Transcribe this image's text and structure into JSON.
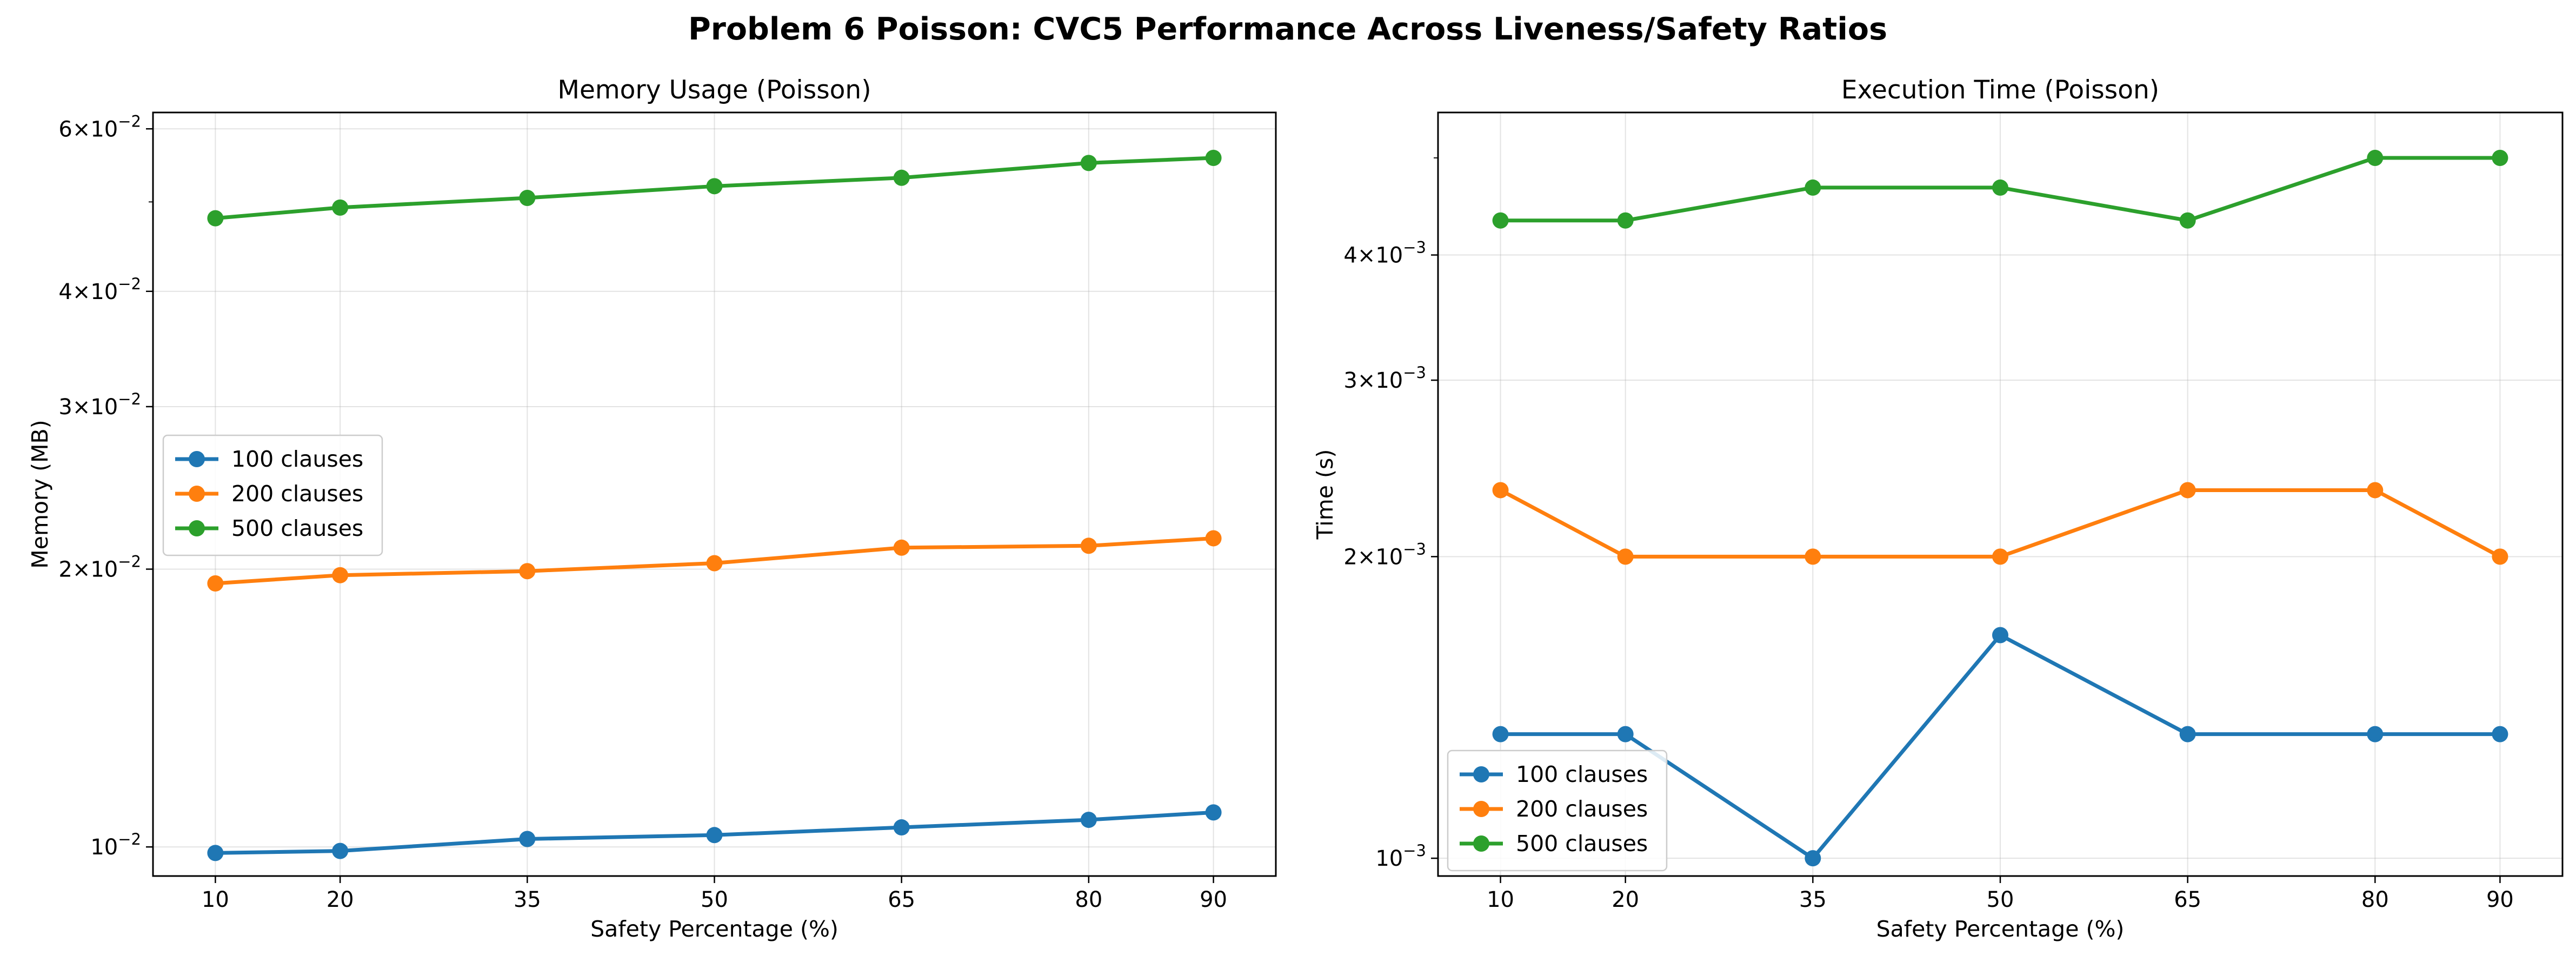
{
  "figure": {
    "suptitle": "Problem 6 Poisson: CVC5 Performance Across Liveness/Safety Ratios"
  },
  "chart_data": [
    {
      "type": "line",
      "title": "Memory Usage (Poisson)",
      "xlabel": "Safety Percentage (%)",
      "ylabel": "Memory (MB)",
      "yscale": "log",
      "xlim": [
        5,
        95
      ],
      "ylim": [
        0.0093,
        0.0625
      ],
      "grid": true,
      "legend_position": "center-left",
      "x": [
        10,
        20,
        35,
        50,
        65,
        80,
        90
      ],
      "x_tick_labels": [
        "10",
        "20",
        "35",
        "50",
        "65",
        "80",
        "90"
      ],
      "y_ticks": [
        {
          "value": 0.01,
          "mantissa": "",
          "exponent": "−2",
          "base": "10"
        },
        {
          "value": 0.02,
          "mantissa": "2×",
          "exponent": "−2",
          "base": "10"
        },
        {
          "value": 0.03,
          "mantissa": "3×",
          "exponent": "−2",
          "base": "10"
        },
        {
          "value": 0.04,
          "mantissa": "4×",
          "exponent": "−2",
          "base": "10"
        },
        {
          "value": 0.06,
          "mantissa": "6×",
          "exponent": "−2",
          "base": "10"
        }
      ],
      "minor_ticks": [
        0.05
      ],
      "series": [
        {
          "name": "100 clauses",
          "color": "#1f77b4",
          "values": [
            0.00985,
            0.0099,
            0.0102,
            0.0103,
            0.0105,
            0.0107,
            0.0109
          ]
        },
        {
          "name": "200 clauses",
          "color": "#ff7f0e",
          "values": [
            0.0193,
            0.0197,
            0.0199,
            0.0203,
            0.0211,
            0.0212,
            0.0216
          ]
        },
        {
          "name": "500 clauses",
          "color": "#2ca02c",
          "values": [
            0.048,
            0.0493,
            0.0505,
            0.052,
            0.0531,
            0.0551,
            0.0558
          ]
        }
      ]
    },
    {
      "type": "line",
      "title": "Execution Time (Poisson)",
      "xlabel": "Safety Percentage (%)",
      "ylabel": "Time (s)",
      "yscale": "log",
      "xlim": [
        5,
        95
      ],
      "ylim": [
        0.00096,
        0.00555
      ],
      "grid": true,
      "legend_position": "lower-left",
      "x": [
        10,
        20,
        35,
        50,
        65,
        80,
        90
      ],
      "x_tick_labels": [
        "10",
        "20",
        "35",
        "50",
        "65",
        "80",
        "90"
      ],
      "y_ticks": [
        {
          "value": 0.001,
          "mantissa": "",
          "exponent": "−3",
          "base": "10"
        },
        {
          "value": 0.002,
          "mantissa": "2×",
          "exponent": "−3",
          "base": "10"
        },
        {
          "value": 0.003,
          "mantissa": "3×",
          "exponent": "−3",
          "base": "10"
        },
        {
          "value": 0.004,
          "mantissa": "4×",
          "exponent": "−3",
          "base": "10"
        }
      ],
      "minor_ticks": [
        0.005
      ],
      "series": [
        {
          "name": "100 clauses",
          "color": "#1f77b4",
          "values": [
            0.00133,
            0.00133,
            0.001,
            0.00167,
            0.00133,
            0.00133,
            0.00133
          ]
        },
        {
          "name": "200 clauses",
          "color": "#ff7f0e",
          "values": [
            0.00233,
            0.002,
            0.002,
            0.002,
            0.00233,
            0.00233,
            0.002
          ]
        },
        {
          "name": "500 clauses",
          "color": "#2ca02c",
          "values": [
            0.00433,
            0.00433,
            0.00467,
            0.00467,
            0.00433,
            0.005,
            0.005
          ]
        }
      ]
    }
  ]
}
